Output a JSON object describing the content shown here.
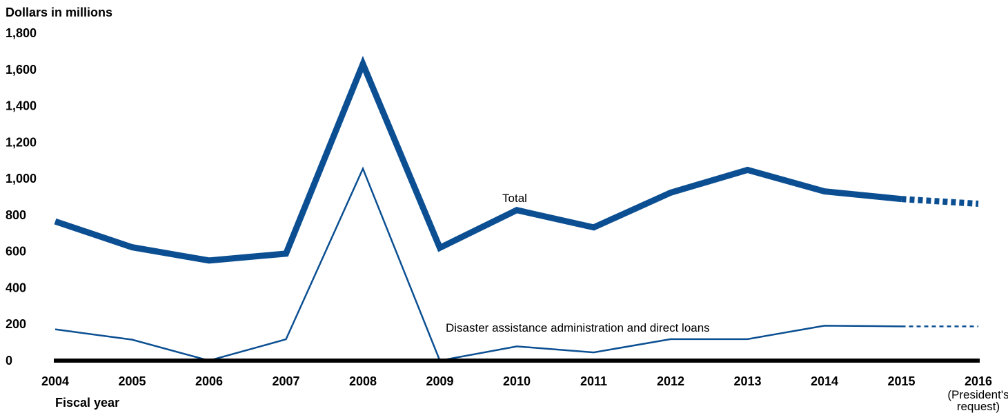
{
  "chart_data": {
    "type": "line",
    "ylabel": "Dollars in millions",
    "xlabel": "Fiscal year",
    "ylim": [
      0,
      1800
    ],
    "y_ticks": [
      "0",
      "200",
      "400",
      "600",
      "800",
      "1,000",
      "1,200",
      "1,400",
      "1,600",
      "1,800"
    ],
    "y_tick_values": [
      0,
      200,
      400,
      600,
      800,
      1000,
      1200,
      1400,
      1600,
      1800
    ],
    "categories": [
      "2004",
      "2005",
      "2006",
      "2007",
      "2008",
      "2009",
      "2010",
      "2011",
      "2012",
      "2013",
      "2014",
      "2015",
      "2016"
    ],
    "category_sublabel": {
      "index": 12,
      "lines": [
        "(President's",
        "request)"
      ]
    },
    "grid": false,
    "projected_segment_from_index": 11,
    "series": [
      {
        "name": "Total",
        "color": "#0b4f92",
        "style": "thick",
        "values": [
          765,
          623,
          550,
          588,
          1630,
          620,
          827,
          732,
          923,
          1048,
          930,
          888,
          862
        ]
      },
      {
        "name": "Disaster assistance administration and direct loans",
        "color": "#0b4f92",
        "style": "thin",
        "values": [
          172,
          115,
          0,
          117,
          1055,
          0,
          78,
          45,
          118,
          118,
          192,
          188,
          188
        ]
      }
    ]
  }
}
